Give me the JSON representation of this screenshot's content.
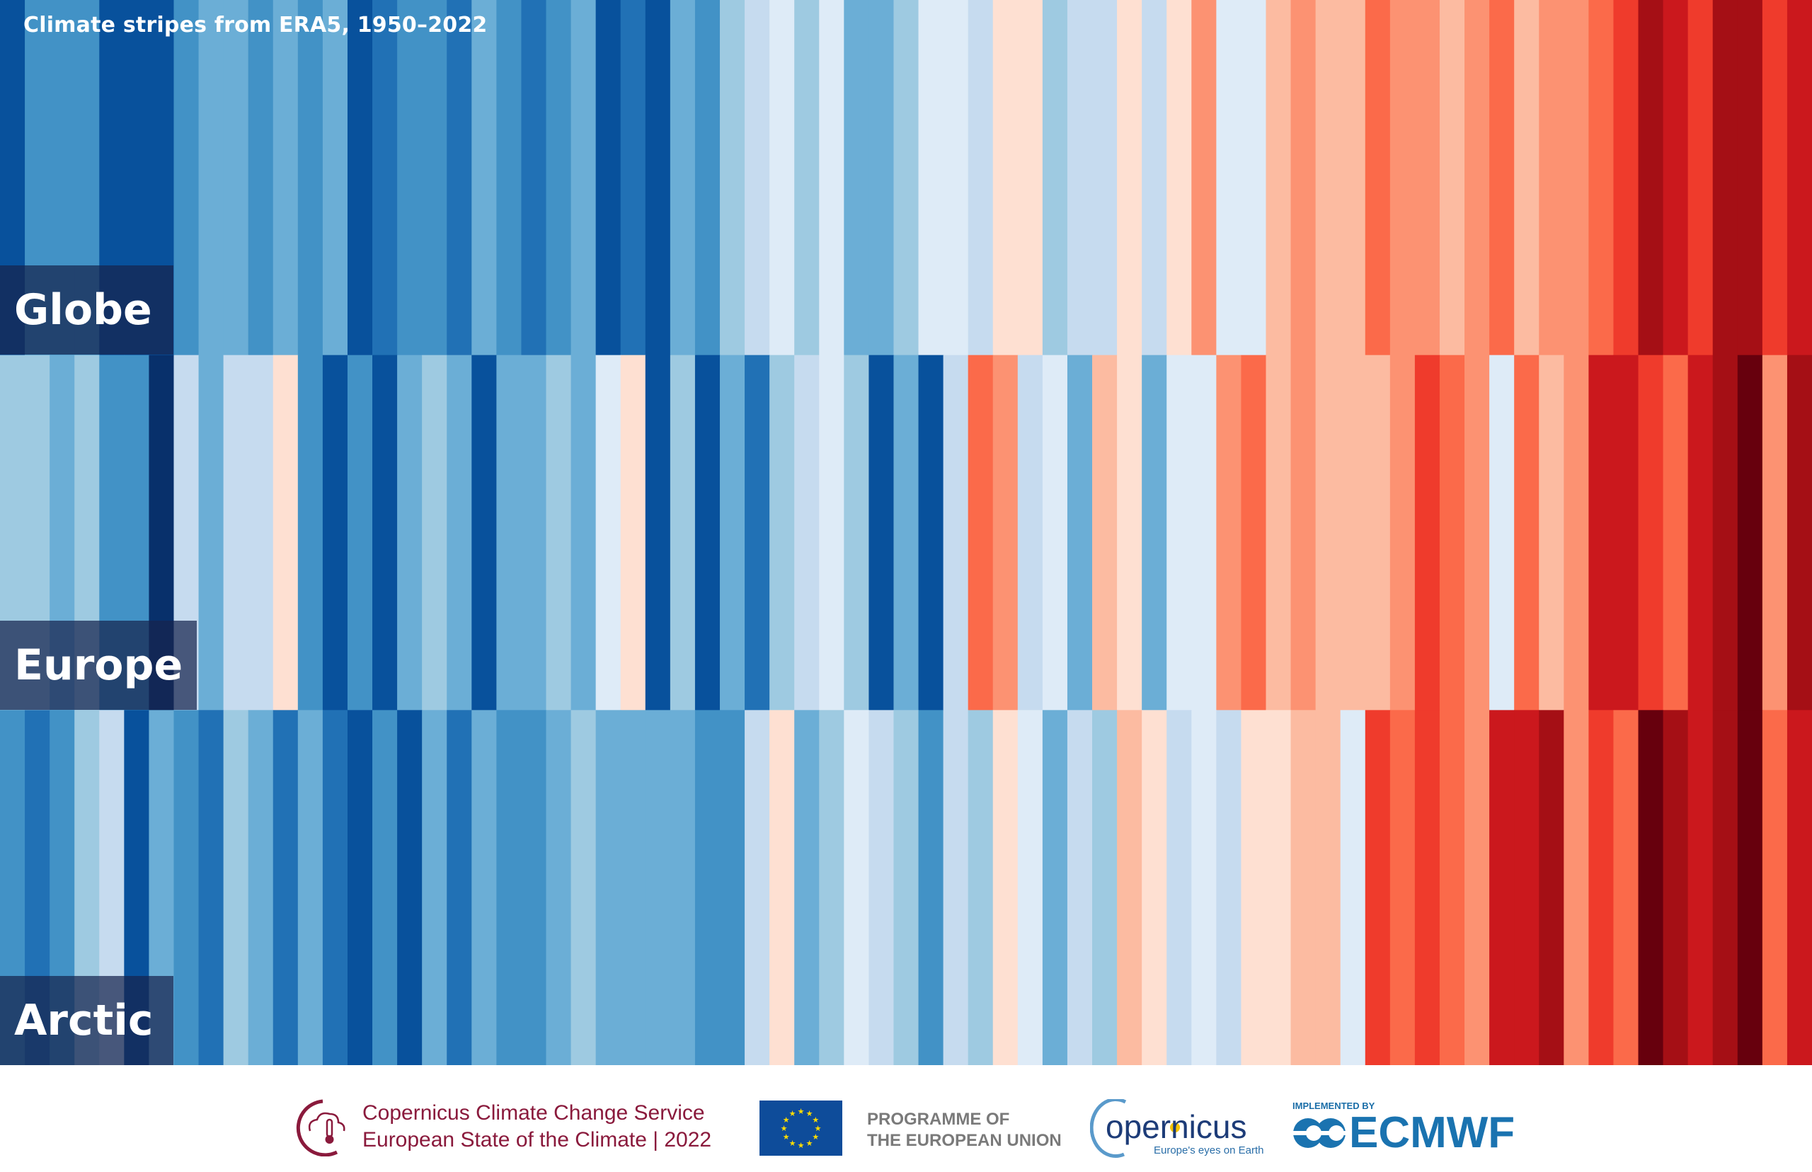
{
  "chart_data": {
    "type": "heatmap",
    "title": "Climate stripes from ERA5, 1950–2022",
    "years": [
      1950,
      2022
    ],
    "rows": [
      {
        "name": "Globe",
        "levels": [
          -7,
          -5,
          -5,
          -5,
          -7,
          -7,
          -7,
          -5,
          -4,
          -4,
          -5,
          -4,
          -5,
          -4,
          -7,
          -6,
          -5,
          -5,
          -6,
          -4,
          -5,
          -6,
          -5,
          -4,
          -7,
          -6,
          -7,
          -4,
          -5,
          -3,
          -2,
          -1,
          -3,
          -1,
          -4,
          -4,
          -3,
          -1,
          -1,
          -2,
          1,
          1,
          -3,
          -2,
          -2,
          1,
          -2,
          1,
          3,
          -1,
          -1,
          2,
          3,
          2,
          2,
          4,
          3,
          3,
          2,
          3,
          4,
          2,
          3,
          3,
          4,
          5,
          7,
          6,
          5,
          7,
          7,
          5,
          6
        ]
      },
      {
        "name": "Europe",
        "levels": [
          -3,
          -3,
          -4,
          -3,
          -5,
          -5,
          -8,
          -2,
          -4,
          -2,
          -2,
          1,
          -5,
          -7,
          -5,
          -7,
          -4,
          -3,
          -4,
          -7,
          -4,
          -4,
          -3,
          -4,
          -1,
          1,
          -7,
          -3,
          -7,
          -4,
          -6,
          -3,
          -2,
          -1,
          -3,
          -7,
          -4,
          -7,
          -2,
          4,
          3,
          -2,
          -1,
          -4,
          2,
          1,
          -4,
          -1,
          -1,
          3,
          4,
          2,
          3,
          2,
          2,
          2,
          3,
          5,
          4,
          3,
          -1,
          4,
          2,
          3,
          6,
          6,
          5,
          4,
          6,
          7,
          8,
          3,
          7
        ]
      },
      {
        "name": "Arctic",
        "levels": [
          -5,
          -6,
          -5,
          -3,
          -2,
          -7,
          -4,
          -5,
          -6,
          -3,
          -4,
          -6,
          -4,
          -6,
          -7,
          -5,
          -7,
          -4,
          -6,
          -4,
          -5,
          -5,
          -4,
          -3,
          -4,
          -4,
          -4,
          -4,
          -5,
          -5,
          -2,
          1,
          -4,
          -3,
          -1,
          -2,
          -3,
          -5,
          -2,
          -3,
          1,
          -1,
          -4,
          -2,
          -3,
          2,
          1,
          -2,
          -1,
          -2,
          1,
          1,
          2,
          2,
          -1,
          5,
          4,
          5,
          4,
          3,
          6,
          6,
          7,
          3,
          5,
          4,
          8,
          7,
          6,
          7,
          8,
          4,
          6
        ]
      }
    ],
    "color_scale": {
      "-8": "#08306b",
      "-7": "#08519c",
      "-6": "#2171b5",
      "-5": "#4292c6",
      "-4": "#6baed6",
      "-3": "#9ecae1",
      "-2": "#c6dbef",
      "-1": "#deebf7",
      "1": "#fee0d2",
      "2": "#fcbba1",
      "3": "#fc9272",
      "4": "#fb6a4a",
      "5": "#ef3b2c",
      "6": "#cb181d",
      "7": "#a50f15",
      "8": "#67000d"
    },
    "legend": "none",
    "grid": false
  },
  "labels": {
    "globe": "Globe",
    "europe": "Europe",
    "arctic": "Arctic"
  },
  "footer": {
    "c3s_line1": "Copernicus Climate Change Service",
    "c3s_line2": "European State of the Climate | 2022",
    "programme_line1": "PROGRAMME OF",
    "programme_line2": "THE EUROPEAN UNION",
    "copernicus_word": "opernicus",
    "copernicus_tagline": "Europe's eyes on Earth",
    "implemented_by": "IMPLEMENTED BY",
    "ecmwf": "ECMWF"
  },
  "colors": {
    "c3s": "#8a1a3c",
    "eu_blue": "#0e4c9a",
    "eu_star": "#ffdd00",
    "ecmwf": "#1a73b0"
  }
}
